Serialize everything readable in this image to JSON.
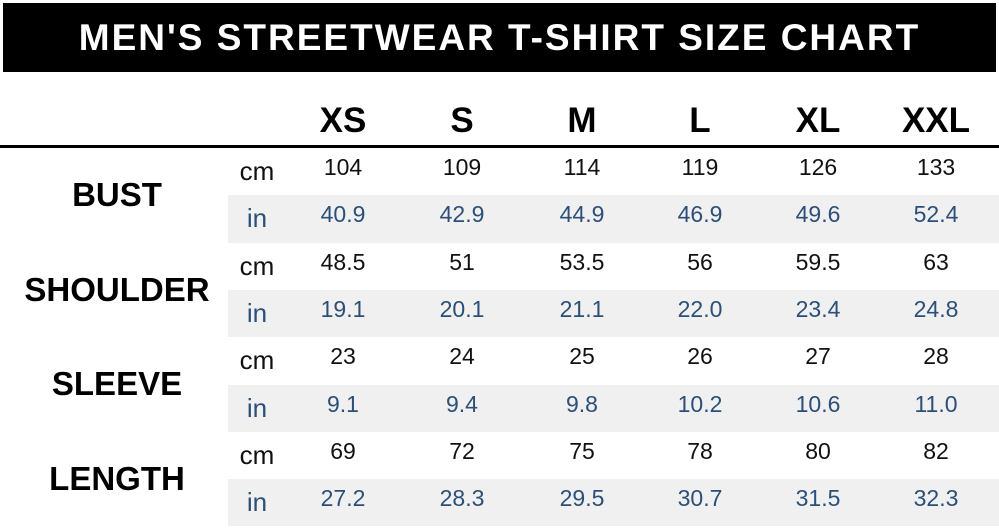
{
  "header": {
    "title": "MEN'S STREETWEAR T-SHIRT SIZE CHART"
  },
  "table": {
    "sizes": [
      "XS",
      "S",
      "M",
      "L",
      "XL",
      "XXL"
    ],
    "rows": [
      {
        "label": "BUST",
        "cm_unit": "cm",
        "cm": [
          "104",
          "109",
          "114",
          "119",
          "126",
          "133"
        ],
        "in_unit": "in",
        "in": [
          "40.9",
          "42.9",
          "44.9",
          "46.9",
          "49.6",
          "52.4"
        ]
      },
      {
        "label": "SHOULDER",
        "cm_unit": "cm",
        "cm": [
          "48.5",
          "51",
          "53.5",
          "56",
          "59.5",
          "63"
        ],
        "in_unit": "in",
        "in": [
          "19.1",
          "20.1",
          "21.1",
          "22.0",
          "23.4",
          "24.8"
        ]
      },
      {
        "label": "SLEEVE",
        "cm_unit": "cm",
        "cm": [
          "23",
          "24",
          "25",
          "26",
          "27",
          "28"
        ],
        "in_unit": "in",
        "in": [
          "9.1",
          "9.4",
          "9.8",
          "10.2",
          "10.6",
          "11.0"
        ]
      },
      {
        "label": "LENGTH",
        "cm_unit": "cm",
        "cm": [
          "69",
          "72",
          "75",
          "78",
          "80",
          "82"
        ],
        "in_unit": "in",
        "in": [
          "27.2",
          "28.3",
          "29.5",
          "30.7",
          "31.5",
          "32.3"
        ]
      }
    ]
  }
}
